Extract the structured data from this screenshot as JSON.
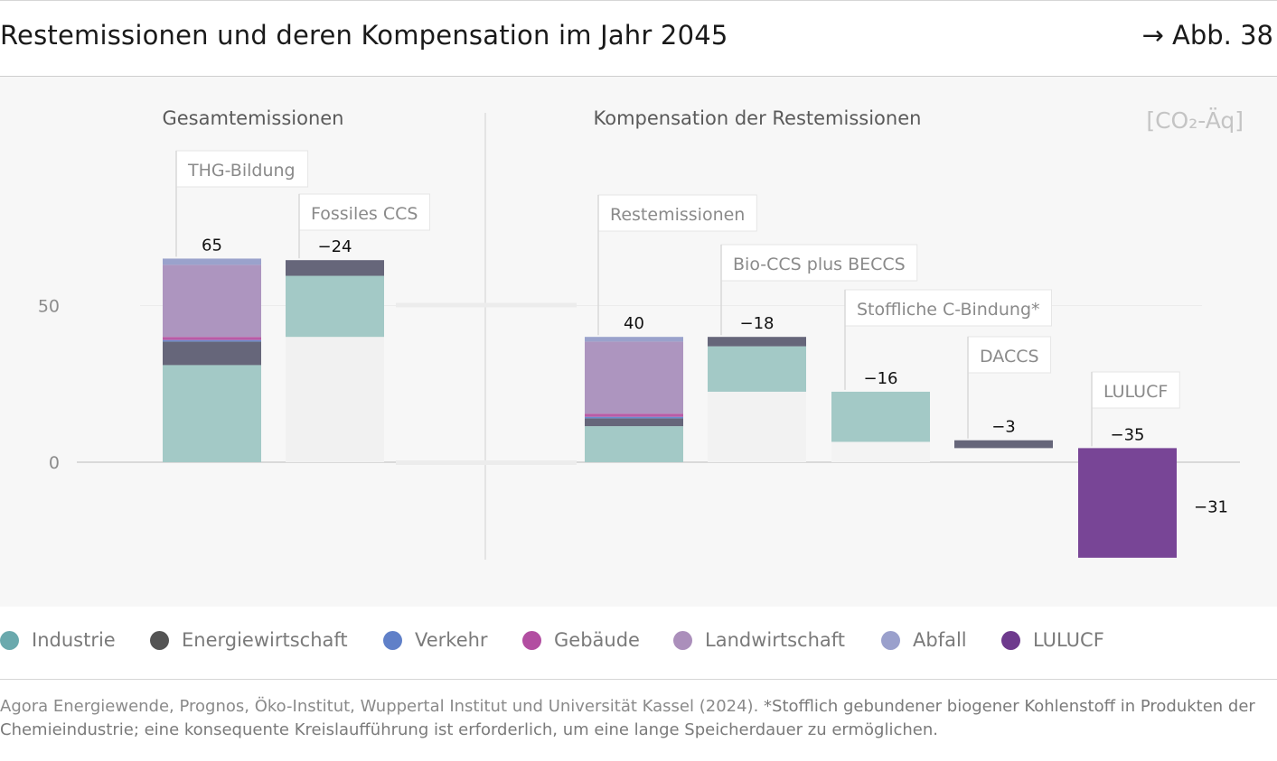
{
  "header": {
    "title": "Restemissionen und deren Kompensation im Jahr 2045",
    "figure_ref": "→ Abb. 38"
  },
  "chart_data": {
    "type": "bar",
    "subtype": "stacked-waterfall",
    "title": "Restemissionen und deren Kompensation im Jahr 2045",
    "unit_label": "[CO₂-Äq]",
    "panel_titles": [
      "Gesamtemissionen",
      "Kompensation der Restemissionen"
    ],
    "y_ticks": [
      0,
      50
    ],
    "ylim": [
      -32,
      92
    ],
    "bars": [
      {
        "id": "thg",
        "label": "THG-Bildung",
        "value_label": "65",
        "base": 0,
        "segments": [
          [
            "Industrie",
            31
          ],
          [
            "Energiewirtschaft",
            7.5
          ],
          [
            "Verkehr",
            0.5
          ],
          [
            "Gebäude",
            1
          ],
          [
            "Landwirtschaft",
            23
          ],
          [
            "Abfall",
            2
          ]
        ]
      },
      {
        "id": "ccs",
        "label": "Fossiles CCS",
        "value_label": "−24",
        "base": 40,
        "segments": [
          [
            "Industrie",
            19.5
          ],
          [
            "Energiewirtschaft",
            5
          ]
        ]
      },
      {
        "id": "rest",
        "label": "Restemissionen",
        "value_label": "40",
        "base": 0,
        "segments": [
          [
            "Industrie",
            11.5
          ],
          [
            "Energiewirtschaft",
            2.5
          ],
          [
            "Verkehr",
            0.5
          ],
          [
            "Gebäude",
            1
          ],
          [
            "Landwirtschaft",
            23
          ],
          [
            "Abfall",
            1.5
          ]
        ]
      },
      {
        "id": "bioccs",
        "label": "Bio-CCS plus BECCS",
        "value_label": "−18",
        "base": 22.5,
        "segments": [
          [
            "Industrie",
            14.5
          ],
          [
            "Energiewirtschaft",
            3
          ]
        ]
      },
      {
        "id": "stoff",
        "label": "Stoffliche C-Bindung*",
        "value_label": "−16",
        "base": 6.5,
        "segments": [
          [
            "Industrie",
            16
          ]
        ]
      },
      {
        "id": "daccs",
        "label": "DACCS",
        "value_label": "−3",
        "base": 4.5,
        "segments": [
          [
            "Energiewirtschaft",
            2.5
          ]
        ]
      },
      {
        "id": "lulucf",
        "label": "LULUCF",
        "value_label": "−35",
        "base": -30.5,
        "segments": [
          [
            "LULUCF",
            35
          ]
        ]
      }
    ],
    "result_label": "−31",
    "colors": {
      "Industrie": "#a3c9c6",
      "Energiewirtschaft": "#66667a",
      "Verkehr": "#6b8ccc",
      "Gebäude": "#b95ba6",
      "Landwirtschaft": "#ad95bf",
      "Abfall": "#9aa2cc",
      "LULUCF": "#784596"
    }
  },
  "legend": [
    {
      "label": "Industrie",
      "color": "#6aa9ad"
    },
    {
      "label": "Energiewirtschaft",
      "color": "#545454"
    },
    {
      "label": "Verkehr",
      "color": "#6080c8"
    },
    {
      "label": "Gebäude",
      "color": "#b24ea1"
    },
    {
      "label": "Landwirtschaft",
      "color": "#ab8fbb"
    },
    {
      "label": "Abfall",
      "color": "#9aa0cc"
    },
    {
      "label": "LULUCF",
      "color": "#6e3a8d"
    }
  ],
  "footer": {
    "source": "Agora Energiewende, Prognos, Öko-Institut, Wuppertal Institut und Universität Kassel (2024).",
    "note": " *Stofflich gebundener biogener Kohlenstoff in Pro­dukten der Chemieindustrie; eine konsequente Kreislaufführung ist erforderlich, um eine lange Speicherdauer zu ermöglichen."
  }
}
